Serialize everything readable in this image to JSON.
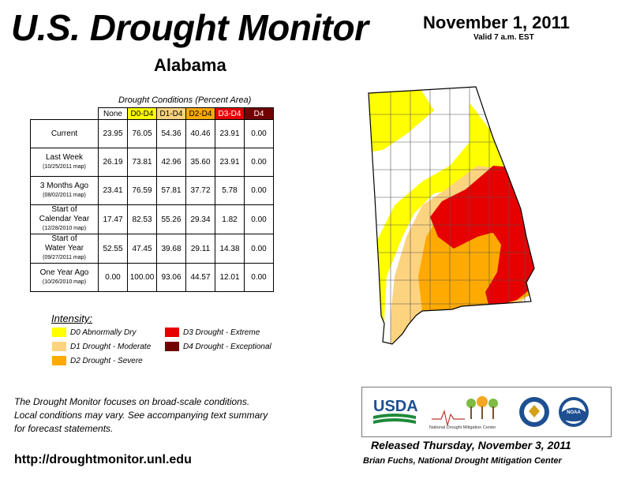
{
  "title": "U.S. Drought Monitor",
  "state": "Alabama",
  "date": "November 1, 2011",
  "valid": "Valid 7 a.m. EST",
  "table": {
    "caption": "Drought Conditions (Percent Area)",
    "columns": [
      "None",
      "D0-D4",
      "D1-D4",
      "D2-D4",
      "D3-D4",
      "D4"
    ],
    "column_colors": [
      "#ffffff",
      "#ffff00",
      "#fcd37f",
      "#ffaa00",
      "#e60000",
      "#730000"
    ],
    "rows": [
      {
        "label": "Current",
        "sub": "",
        "values": [
          "23.95",
          "76.05",
          "54.36",
          "40.46",
          "23.91",
          "0.00"
        ]
      },
      {
        "label": "Last Week",
        "sub": "(10/25/2011 map)",
        "values": [
          "26.19",
          "73.81",
          "42.96",
          "35.60",
          "23.91",
          "0.00"
        ]
      },
      {
        "label": "3 Months Ago",
        "sub": "(08/02/2011 map)",
        "values": [
          "23.41",
          "76.59",
          "57.81",
          "37.72",
          "5.78",
          "0.00"
        ]
      },
      {
        "label": "Start of\nCalendar Year",
        "sub": "(12/28/2010 map)",
        "values": [
          "17.47",
          "82.53",
          "55.26",
          "29.34",
          "1.82",
          "0.00"
        ]
      },
      {
        "label": "Start of\nWater Year",
        "sub": "(09/27/2011 map)",
        "values": [
          "52.55",
          "47.45",
          "39.68",
          "29.11",
          "14.38",
          "0.00"
        ]
      },
      {
        "label": "One Year Ago",
        "sub": "(10/26/2010 map)",
        "values": [
          "0.00",
          "100.00",
          "93.06",
          "44.57",
          "12.01",
          "0.00"
        ]
      }
    ]
  },
  "legend": {
    "title": "Intensity:",
    "items": [
      {
        "label": "D0 Abnormally Dry",
        "color": "#ffff00"
      },
      {
        "label": "D1 Drought - Moderate",
        "color": "#fcd37f"
      },
      {
        "label": "D2 Drought - Severe",
        "color": "#ffaa00"
      },
      {
        "label": "D3 Drought - Extreme",
        "color": "#e60000"
      },
      {
        "label": "D4 Drought - Exceptional",
        "color": "#730000"
      }
    ]
  },
  "footer_text": [
    "The Drought Monitor focuses on broad-scale conditions.",
    "Local conditions may vary. See accompanying text summary",
    "for forecast statements."
  ],
  "url": "http://droughtmonitor.unl.edu",
  "released": "Released Thursday, November 3, 2011",
  "author": "Brian Fuchs, National Drought Mitigation Center",
  "logos": {
    "usda": "USDA",
    "ndmc": "National Drought Mitigation Center",
    "noaa": "NOAA"
  }
}
